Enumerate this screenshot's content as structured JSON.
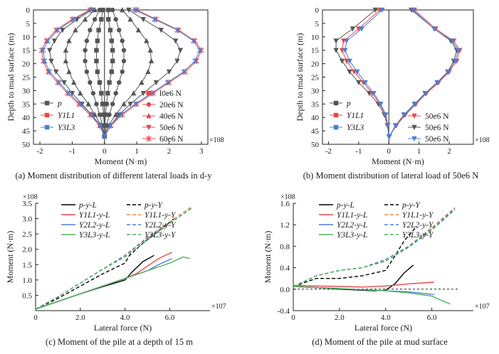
{
  "figure": {
    "captions": [
      "(a) Moment distribution of different lateral loads in d-y",
      "(b) Moment distribution of lateral load of 50e6 N",
      "(c) Moment of the pile at a depth of 15 m",
      "(d) Moment of the pile at mud surface"
    ]
  },
  "chart_data": [
    {
      "id": "a",
      "type": "line",
      "title": "(a) Moment distribution of different lateral loads in d-y",
      "xlabel": "Moment (N·m)",
      "ylabel": "Depth to mud surface (m)",
      "x_multiplier": "×10^8",
      "xlim": [
        -2.2,
        3.2
      ],
      "ylim": [
        0,
        50
      ],
      "y_inverted": true,
      "xticks": [
        -2,
        -1,
        0,
        1,
        2,
        3
      ],
      "yticks": [
        0,
        5,
        10,
        15,
        20,
        25,
        30,
        35,
        40,
        45,
        50
      ],
      "depths": [
        0,
        3.5,
        7.5,
        11.5,
        15,
        19,
        23,
        27,
        31,
        35,
        39,
        43,
        47
      ],
      "legend_methods": [
        "p",
        "Y1L1",
        "Y3L3"
      ],
      "legend_loads": [
        "l0e6 N",
        "20e6 N",
        "40e6 N",
        "50e6 N",
        "60e6 N"
      ],
      "series": [
        {
          "name": "p 10e6 N",
          "color": "#555555",
          "marker": "square",
          "values": [
            0.12,
            0.12,
            0.18,
            0.22,
            0.25,
            0.25,
            0.22,
            0.15,
            0.1,
            0.06,
            0.03,
            0.01,
            0
          ]
        },
        {
          "name": "p 10e6 N (neg)",
          "color": "#555555",
          "marker": "square",
          "values": [
            -0.05,
            -0.1,
            -0.18,
            -0.22,
            -0.25,
            -0.25,
            -0.22,
            -0.15,
            -0.1,
            -0.06,
            -0.03,
            -0.01,
            0
          ]
        },
        {
          "name": "p 20e6 N",
          "color": "#555555",
          "marker": "circle",
          "values": [
            0.25,
            0.35,
            0.45,
            0.55,
            0.6,
            0.6,
            0.55,
            0.45,
            0.35,
            0.25,
            0.15,
            0.06,
            0
          ]
        },
        {
          "name": "p 20e6 N (neg)",
          "color": "#555555",
          "marker": "circle",
          "values": [
            -0.15,
            -0.3,
            -0.45,
            -0.55,
            -0.6,
            -0.6,
            -0.55,
            -0.45,
            -0.35,
            -0.25,
            -0.15,
            -0.06,
            0
          ]
        },
        {
          "name": "p 40e6 N",
          "color": "#555555",
          "marker": "triangle-up",
          "values": [
            0.55,
            0.8,
            1.05,
            1.3,
            1.42,
            1.45,
            1.35,
            1.15,
            0.9,
            0.6,
            0.35,
            0.12,
            0
          ]
        },
        {
          "name": "p 40e6 N (neg)",
          "color": "#555555",
          "marker": "triangle-up",
          "values": [
            -0.3,
            -0.6,
            -0.9,
            -1.1,
            -1.2,
            -1.2,
            -1.1,
            -0.95,
            -0.75,
            -0.5,
            -0.3,
            -0.1,
            0
          ]
        },
        {
          "name": "p 50e6 N",
          "color": "#555555",
          "marker": "triangle-down",
          "values": [
            0.75,
            1.2,
            1.75,
            2.2,
            2.35,
            2.25,
            2.0,
            1.6,
            1.2,
            0.8,
            0.45,
            0.18,
            0
          ]
        },
        {
          "name": "p 50e6 N (neg)",
          "color": "#555555",
          "marker": "triangle-down",
          "values": [
            -0.4,
            -0.85,
            -1.3,
            -1.55,
            -1.7,
            -1.65,
            -1.5,
            -1.25,
            -1.0,
            -0.7,
            -0.4,
            -0.15,
            0
          ]
        },
        {
          "name": "Y1L1 60e6 N",
          "color": "#e8474a",
          "marker": "star",
          "values": [
            1.0,
            1.6,
            2.3,
            2.8,
            3.0,
            2.85,
            2.5,
            2.0,
            1.5,
            1.0,
            0.55,
            0.2,
            0
          ]
        },
        {
          "name": "Y1L1 60e6 N (neg)",
          "color": "#e8474a",
          "marker": "star",
          "values": [
            -0.45,
            -1.0,
            -1.5,
            -1.8,
            -1.95,
            -1.9,
            -1.75,
            -1.45,
            -1.15,
            -0.8,
            -0.45,
            -0.15,
            0
          ]
        },
        {
          "name": "Y3L3 60e6 N",
          "color": "#4a7fd6",
          "marker": "star",
          "values": [
            0.95,
            1.55,
            2.25,
            2.75,
            2.95,
            2.8,
            2.45,
            1.95,
            1.45,
            0.95,
            0.5,
            0.18,
            0
          ]
        },
        {
          "name": "Y3L3 60e6 N (neg)",
          "color": "#4a7fd6",
          "marker": "star",
          "values": [
            -0.4,
            -0.95,
            -1.45,
            -1.75,
            -1.9,
            -1.85,
            -1.7,
            -1.4,
            -1.1,
            -0.75,
            -0.4,
            -0.12,
            0
          ]
        }
      ]
    },
    {
      "id": "b",
      "type": "line",
      "title": "(b) Moment distribution of lateral load of 50e6 N",
      "xlabel": "Moment (N·m)",
      "ylabel": "Depth to mud surface (m)",
      "x_multiplier": "×10^8",
      "xlim": [
        -2.2,
        2.8
      ],
      "ylim": [
        0,
        50
      ],
      "y_inverted": true,
      "xticks": [
        -2,
        -1,
        0,
        1,
        2
      ],
      "yticks": [
        0,
        5,
        10,
        15,
        20,
        25,
        30,
        35,
        40,
        45,
        50
      ],
      "depths": [
        0,
        7,
        11.5,
        15,
        19,
        23,
        27,
        31,
        35,
        39,
        43,
        47
      ],
      "legend_methods": [
        "p",
        "Y1L1",
        "Y3L3"
      ],
      "legend_loads": [
        "50e6 N",
        "50e6 N",
        "50e6 N"
      ],
      "series": [
        {
          "name": "p",
          "color": "#555555",
          "marker": "triangle-down",
          "values": [
            0.75,
            1.5,
            2.05,
            2.25,
            2.15,
            1.95,
            1.6,
            1.2,
            0.85,
            0.5,
            0.22,
            0.02
          ]
        },
        {
          "name": "p (neg)",
          "color": "#555555",
          "marker": "triangle-down",
          "values": [
            -0.45,
            -1.2,
            -1.75,
            -1.75,
            -1.55,
            -1.3,
            -1.0,
            -0.65,
            -0.35,
            -0.15,
            -0.05,
            0
          ]
        },
        {
          "name": "Y1L1",
          "color": "#e8474a",
          "marker": "triangle-down",
          "values": [
            0.85,
            1.55,
            2.15,
            2.35,
            2.25,
            2.0,
            1.65,
            1.25,
            0.9,
            0.55,
            0.25,
            0.02
          ]
        },
        {
          "name": "Y1L1 (neg)",
          "color": "#e8474a",
          "marker": "triangle-down",
          "values": [
            -0.3,
            -1.0,
            -1.5,
            -1.55,
            -1.4,
            -1.15,
            -0.85,
            -0.55,
            -0.3,
            -0.12,
            -0.04,
            0
          ]
        },
        {
          "name": "Y3L3",
          "color": "#4a7fd6",
          "marker": "triangle-down",
          "values": [
            0.8,
            1.5,
            2.1,
            2.3,
            2.2,
            1.97,
            1.62,
            1.22,
            0.87,
            0.52,
            0.23,
            0.02
          ]
        },
        {
          "name": "Y3L3 (neg)",
          "color": "#4a7fd6",
          "marker": "triangle-down",
          "values": [
            -0.22,
            -0.9,
            -1.4,
            -1.45,
            -1.3,
            -1.05,
            -0.78,
            -0.5,
            -0.27,
            -0.1,
            -0.03,
            0
          ]
        }
      ]
    },
    {
      "id": "c",
      "type": "line",
      "title": "(c) Moment of the pile at a depth of 15 m",
      "xlabel": "Lateral force (N)",
      "ylabel": "Moment (N·m)",
      "x_multiplier": "×10^7",
      "y_multiplier": "×10^8",
      "xlim": [
        0,
        7.8
      ],
      "ylim": [
        0,
        3.5
      ],
      "xticks": [
        0,
        2.0,
        4.0,
        6.0
      ],
      "yticks": [
        0.5,
        1.0,
        1.5,
        2.0,
        2.5,
        3.0,
        3.5
      ],
      "legend": [
        "p-y-L",
        "p-y-Y",
        "Y1L1-y-L",
        "Y1L1-y-Y",
        "Y2L2-y-L",
        "Y2L2-y-Y",
        "Y3L3-y-L",
        "Y3L3-y-Y"
      ],
      "series": [
        {
          "name": "p-y-L",
          "color": "#000000",
          "dash": false,
          "x": [
            0,
            1,
            2,
            3,
            4,
            4.3,
            4.8,
            5.3
          ],
          "values": [
            0.05,
            0.3,
            0.55,
            0.78,
            1.0,
            1.25,
            1.6,
            1.8
          ]
        },
        {
          "name": "p-y-Y",
          "color": "#000000",
          "dash": true,
          "x": [
            0,
            1,
            2,
            3,
            4,
            4.2,
            4.8,
            5.5,
            6.2
          ],
          "values": [
            0.05,
            0.4,
            0.8,
            1.2,
            1.55,
            1.8,
            2.2,
            2.6,
            3.0
          ]
        },
        {
          "name": "Y1L1-y-L",
          "color": "#e8474a",
          "dash": false,
          "x": [
            0,
            1,
            2,
            3,
            4,
            4.5,
            5,
            5.5,
            6.1
          ],
          "values": [
            0.05,
            0.3,
            0.55,
            0.8,
            1.05,
            1.2,
            1.45,
            1.7,
            1.9
          ]
        },
        {
          "name": "Y1L1-y-Y",
          "color": "#e8874a",
          "dash": true,
          "x": [
            0,
            1,
            2,
            3,
            4,
            5,
            6,
            7
          ],
          "values": [
            0.05,
            0.45,
            0.9,
            1.35,
            1.8,
            2.4,
            2.9,
            3.4
          ]
        },
        {
          "name": "Y2L2-y-L",
          "color": "#4a7fd6",
          "dash": false,
          "x": [
            0,
            1,
            2,
            3,
            4,
            5,
            5.5,
            6.1
          ],
          "values": [
            0.05,
            0.3,
            0.55,
            0.8,
            1.05,
            1.3,
            1.5,
            1.7
          ]
        },
        {
          "name": "Y2L2-y-Y",
          "color": "#4a7fd6",
          "dash": true,
          "x": [
            0,
            1,
            2,
            3,
            4,
            5,
            6,
            7
          ],
          "values": [
            0.05,
            0.45,
            0.9,
            1.35,
            1.8,
            2.35,
            2.85,
            3.35
          ]
        },
        {
          "name": "Y3L3-y-L",
          "color": "#4fb05a",
          "dash": false,
          "x": [
            0,
            1,
            2,
            3,
            4,
            5,
            6,
            6.6,
            6.9
          ],
          "values": [
            0.05,
            0.3,
            0.55,
            0.8,
            1.05,
            1.3,
            1.55,
            1.75,
            1.7
          ]
        },
        {
          "name": "Y3L3-y-Y",
          "color": "#4fb05a",
          "dash": true,
          "x": [
            0,
            1,
            2,
            3,
            4,
            5,
            6,
            7
          ],
          "values": [
            0.05,
            0.45,
            0.9,
            1.35,
            1.75,
            2.3,
            2.85,
            3.35
          ]
        }
      ]
    },
    {
      "id": "d",
      "type": "line",
      "title": "(d) Moment of the pile at mud surface",
      "xlabel": "Lateral force (N)",
      "ylabel": "Moment (N·m)",
      "x_multiplier": "×10^7",
      "y_multiplier": "×10^8",
      "xlim": [
        0,
        7.8
      ],
      "ylim": [
        -0.4,
        1.6
      ],
      "xticks": [
        0,
        2.0,
        4.0,
        6.0
      ],
      "yticks": [
        -0.4,
        0.0,
        0.4,
        0.8,
        1.2,
        1.6
      ],
      "legend": [
        "p-y-L",
        "p-y-Y",
        "Y1L1-y-L",
        "Y1L1-y-Y",
        "Y2L2-y-L",
        "Y2L2-y-Y",
        "Y3L3-y-L",
        "Y3L3-y-Y"
      ],
      "series": [
        {
          "name": "p-y-L",
          "color": "#000000",
          "dash": false,
          "x": [
            0,
            1,
            2,
            3,
            3.5,
            4,
            4.4,
            4.8,
            5.2
          ],
          "values": [
            0.05,
            0.03,
            0.0,
            -0.02,
            -0.03,
            -0.02,
            0.1,
            0.3,
            0.45
          ]
        },
        {
          "name": "p-y-Y",
          "color": "#000000",
          "dash": true,
          "x": [
            0,
            1,
            2,
            3,
            4,
            4.3,
            4.8,
            5.3
          ],
          "values": [
            0.05,
            0.2,
            0.2,
            0.25,
            0.35,
            0.55,
            0.9,
            1.15
          ]
        },
        {
          "name": "Y1L1-y-L",
          "color": "#e8474a",
          "dash": false,
          "x": [
            0,
            1,
            2,
            3,
            4,
            5,
            6.1
          ],
          "values": [
            0.07,
            0.06,
            0.05,
            0.04,
            0.06,
            0.1,
            0.13
          ]
        },
        {
          "name": "Y1L1-y-Y",
          "color": "#e8874a",
          "dash": true,
          "x": [
            0,
            1,
            2,
            3,
            4,
            5,
            6,
            7
          ],
          "values": [
            0.05,
            0.25,
            0.35,
            0.4,
            0.55,
            0.8,
            1.15,
            1.52
          ]
        },
        {
          "name": "Y2L2-y-L",
          "color": "#4a7fd6",
          "dash": false,
          "x": [
            0,
            1,
            2,
            3,
            4,
            5,
            6.1
          ],
          "values": [
            0.05,
            0.03,
            0.01,
            -0.01,
            -0.03,
            -0.05,
            -0.1
          ]
        },
        {
          "name": "Y2L2-y-Y",
          "color": "#4a7fd6",
          "dash": true,
          "x": [
            0,
            1,
            2,
            3,
            4,
            5,
            6,
            7
          ],
          "values": [
            0.05,
            0.25,
            0.35,
            0.4,
            0.55,
            0.8,
            1.12,
            1.5
          ]
        },
        {
          "name": "Y3L3-y-L",
          "color": "#4fb05a",
          "dash": false,
          "x": [
            0,
            1,
            2,
            3,
            4,
            5,
            6,
            6.8
          ],
          "values": [
            0.05,
            0.03,
            0.01,
            -0.01,
            -0.03,
            -0.07,
            -0.13,
            -0.28
          ]
        },
        {
          "name": "Y3L3-y-Y",
          "color": "#4fb05a",
          "dash": true,
          "x": [
            0,
            1,
            2,
            3,
            4,
            5,
            6,
            7
          ],
          "values": [
            0.05,
            0.25,
            0.35,
            0.4,
            0.52,
            0.78,
            1.1,
            1.48
          ]
        }
      ]
    }
  ]
}
